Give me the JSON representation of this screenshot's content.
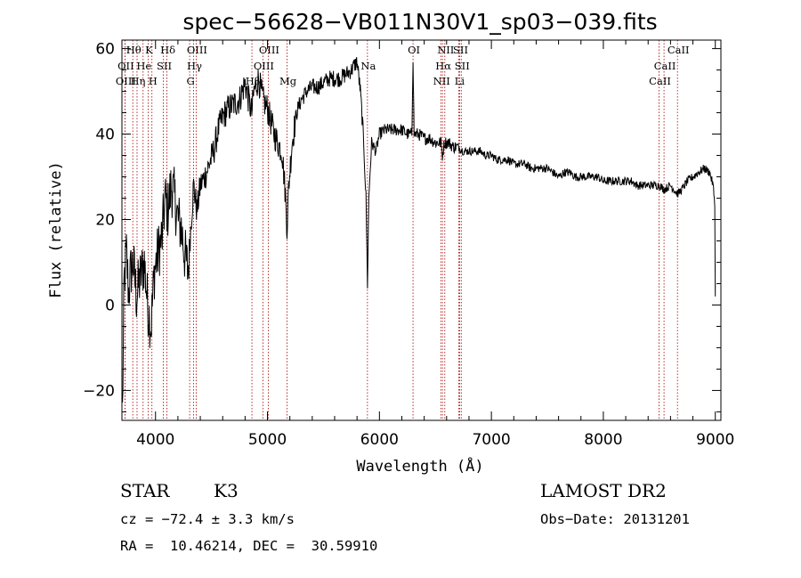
{
  "chart_data": {
    "type": "line",
    "title": "spec−56628−VB011N30V1_sp03−039.fits",
    "xlabel": "Wavelength (Å)",
    "ylabel": "Flux (relative)",
    "xlim": [
      3700,
      9050
    ],
    "ylim": [
      -27,
      62
    ],
    "x_ticks": [
      4000,
      5000,
      6000,
      7000,
      8000,
      9000
    ],
    "x_tick_labels": [
      "4000",
      "5000",
      "6000",
      "7000",
      "8000",
      "9000"
    ],
    "y_ticks": [
      -20,
      0,
      20,
      40,
      60
    ],
    "y_tick_labels": [
      "−20",
      "0",
      "20",
      "40",
      "60"
    ],
    "spectrum_anchor_points": [
      [
        3705,
        -25
      ],
      [
        3720,
        5
      ],
      [
        3740,
        12
      ],
      [
        3760,
        3
      ],
      [
        3780,
        8
      ],
      [
        3800,
        10
      ],
      [
        3830,
        2
      ],
      [
        3860,
        6
      ],
      [
        3900,
        10
      ],
      [
        3930,
        0
      ],
      [
        3960,
        -5
      ],
      [
        3990,
        8
      ],
      [
        4020,
        12
      ],
      [
        4060,
        16
      ],
      [
        4085,
        25
      ],
      [
        4110,
        22
      ],
      [
        4140,
        28
      ],
      [
        4170,
        25
      ],
      [
        4200,
        20
      ],
      [
        4230,
        18
      ],
      [
        4260,
        12
      ],
      [
        4290,
        8
      ],
      [
        4310,
        16
      ],
      [
        4340,
        28
      ],
      [
        4370,
        22
      ],
      [
        4400,
        28
      ],
      [
        4440,
        30
      ],
      [
        4480,
        33
      ],
      [
        4520,
        36
      ],
      [
        4560,
        41
      ],
      [
        4600,
        44
      ],
      [
        4650,
        46
      ],
      [
        4700,
        47
      ],
      [
        4750,
        48
      ],
      [
        4800,
        52
      ],
      [
        4840,
        47
      ],
      [
        4860,
        45
      ],
      [
        4880,
        50
      ],
      [
        4920,
        53
      ],
      [
        4960,
        48
      ],
      [
        5000,
        46
      ],
      [
        5030,
        43
      ],
      [
        5060,
        40
      ],
      [
        5090,
        38
      ],
      [
        5130,
        36
      ],
      [
        5160,
        26
      ],
      [
        5175,
        18
      ],
      [
        5190,
        28
      ],
      [
        5220,
        38
      ],
      [
        5260,
        45
      ],
      [
        5300,
        48
      ],
      [
        5350,
        50
      ],
      [
        5400,
        51
      ],
      [
        5450,
        51
      ],
      [
        5500,
        52
      ],
      [
        5550,
        53
      ],
      [
        5600,
        53
      ],
      [
        5650,
        53
      ],
      [
        5700,
        54
      ],
      [
        5750,
        55
      ],
      [
        5800,
        57
      ],
      [
        5830,
        50
      ],
      [
        5860,
        38
      ],
      [
        5880,
        25
      ],
      [
        5893,
        5
      ],
      [
        5905,
        25
      ],
      [
        5930,
        38
      ],
      [
        5970,
        36
      ],
      [
        6000,
        40
      ],
      [
        6050,
        41
      ],
      [
        6100,
        41
      ],
      [
        6150,
        41
      ],
      [
        6200,
        41
      ],
      [
        6250,
        40
      ],
      [
        6290,
        40
      ],
      [
        6300,
        58
      ],
      [
        6310,
        40
      ],
      [
        6350,
        40
      ],
      [
        6400,
        39
      ],
      [
        6450,
        39
      ],
      [
        6500,
        38
      ],
      [
        6550,
        38
      ],
      [
        6563,
        35
      ],
      [
        6580,
        38
      ],
      [
        6620,
        38
      ],
      [
        6660,
        37
      ],
      [
        6700,
        37
      ],
      [
        6750,
        36
      ],
      [
        6800,
        36
      ],
      [
        6850,
        36
      ],
      [
        6900,
        36
      ],
      [
        6950,
        35
      ],
      [
        7000,
        35
      ],
      [
        7050,
        34
      ],
      [
        7100,
        34
      ],
      [
        7150,
        34
      ],
      [
        7200,
        33
      ],
      [
        7250,
        33
      ],
      [
        7300,
        33
      ],
      [
        7350,
        32
      ],
      [
        7400,
        32
      ],
      [
        7450,
        32
      ],
      [
        7500,
        32
      ],
      [
        7550,
        31
      ],
      [
        7600,
        30
      ],
      [
        7650,
        31
      ],
      [
        7700,
        31
      ],
      [
        7750,
        30
      ],
      [
        7800,
        30
      ],
      [
        7850,
        30
      ],
      [
        7900,
        30
      ],
      [
        7950,
        30
      ],
      [
        8000,
        29
      ],
      [
        8050,
        29
      ],
      [
        8100,
        29
      ],
      [
        8150,
        29
      ],
      [
        8200,
        29
      ],
      [
        8250,
        29
      ],
      [
        8300,
        28
      ],
      [
        8350,
        28
      ],
      [
        8400,
        28
      ],
      [
        8450,
        28
      ],
      [
        8500,
        28
      ],
      [
        8542,
        27
      ],
      [
        8600,
        28
      ],
      [
        8662,
        26
      ],
      [
        8700,
        27
      ],
      [
        8750,
        29
      ],
      [
        8800,
        30
      ],
      [
        8850,
        31
      ],
      [
        8900,
        32
      ],
      [
        8950,
        31
      ],
      [
        8980,
        28
      ],
      [
        8995,
        24
      ],
      [
        9000,
        2
      ]
    ],
    "spectral_lines": [
      {
        "label": "Hθ",
        "x": 3797,
        "row": 0
      },
      {
        "label": "OII",
        "x": 3727,
        "row": 1
      },
      {
        "label": "OIII",
        "x": 3727,
        "row": 2
      },
      {
        "label": "He",
        "x": 3889,
        "row": 1
      },
      {
        "label": "Hη",
        "x": 3835,
        "row": 2
      },
      {
        "label": "K",
        "x": 3934,
        "row": 0
      },
      {
        "label": "SII",
        "x": 4070,
        "row": 1
      },
      {
        "label": "H",
        "x": 3968,
        "row": 2
      },
      {
        "label": "Hδ",
        "x": 4102,
        "row": 0
      },
      {
        "label": "OIII",
        "x": 4363,
        "row": 0
      },
      {
        "label": "Hγ",
        "x": 4340,
        "row": 1
      },
      {
        "label": "G",
        "x": 4305,
        "row": 2
      },
      {
        "label": "Hβ",
        "x": 4861,
        "row": 2
      },
      {
        "label": "OIII",
        "x": 5007,
        "row": 0
      },
      {
        "label": "OIII",
        "x": 4959,
        "row": 1
      },
      {
        "label": "Mg",
        "x": 5175,
        "row": 2
      },
      {
        "label": "Na",
        "x": 5893,
        "row": 1
      },
      {
        "label": "OI",
        "x": 6300,
        "row": 0
      },
      {
        "label": "NII",
        "x": 6584,
        "row": 0
      },
      {
        "label": "SII",
        "x": 6717,
        "row": 0
      },
      {
        "label": "Hα",
        "x": 6563,
        "row": 1
      },
      {
        "label": "SII",
        "x": 6731,
        "row": 1
      },
      {
        "label": "NII",
        "x": 6548,
        "row": 2
      },
      {
        "label": "Li",
        "x": 6708,
        "row": 2
      },
      {
        "label": "CaII",
        "x": 8662,
        "row": 0
      },
      {
        "label": "CaII",
        "x": 8542,
        "row": 1
      },
      {
        "label": "CaII",
        "x": 8498,
        "row": 2
      }
    ]
  },
  "info": {
    "object_class": "STAR",
    "subclass": "K3",
    "redshift_text": "cz = −72.4 ± 3.3 km/s",
    "coords_text": "RA =  10.46214, DEC =  30.59910",
    "survey": "LAMOST DR2",
    "obs_date_text": "Obs−Date: 20131201"
  },
  "colors": {
    "spectrum": "#000000",
    "line_markers": "#a40000",
    "axes": "#000000"
  }
}
